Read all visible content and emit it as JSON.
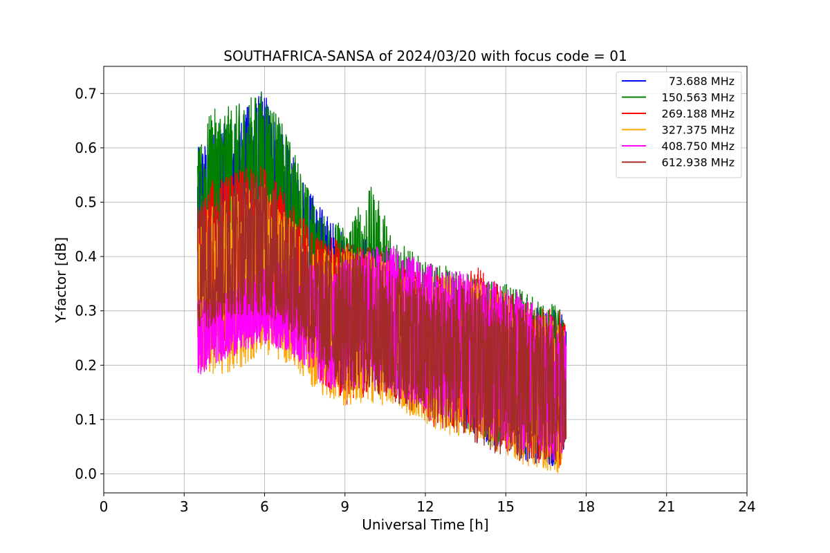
{
  "chart_data": {
    "type": "line",
    "title": "SOUTHAFRICA-SANSA of 2024/03/20 with focus code = 01",
    "xlabel": "Universal Time [h]",
    "ylabel": "Y-factor [dB]",
    "xlim": [
      0,
      24
    ],
    "ylim": [
      -0.035,
      0.75
    ],
    "xticks": [
      0,
      3,
      6,
      9,
      12,
      15,
      18,
      21,
      24
    ],
    "xtick_labels": [
      "0",
      "3",
      "6",
      "9",
      "12",
      "15",
      "18",
      "21",
      "24"
    ],
    "yticks": [
      0.0,
      0.1,
      0.2,
      0.3,
      0.4,
      0.5,
      0.6,
      0.7
    ],
    "ytick_labels": [
      "0.0",
      "0.1",
      "0.2",
      "0.3",
      "0.4",
      "0.5",
      "0.6",
      "0.7"
    ],
    "grid": true,
    "legend_position": "top-right",
    "series": [
      {
        "name": "73.688 MHz",
        "color": "#0000ff",
        "x": [
          3.5,
          4.0,
          5.0,
          6.0,
          7.0,
          8.0,
          9.0,
          10.0,
          11.0,
          12.0,
          13.0,
          14.0,
          15.0,
          16.0,
          17.0,
          17.25
        ],
        "upper": [
          0.6,
          0.63,
          0.66,
          0.71,
          0.59,
          0.5,
          0.44,
          0.43,
          0.39,
          0.37,
          0.35,
          0.34,
          0.33,
          0.31,
          0.31,
          0.27
        ],
        "lower": [
          0.3,
          0.33,
          0.34,
          0.35,
          0.26,
          0.22,
          0.17,
          0.17,
          0.14,
          0.13,
          0.09,
          0.07,
          0.03,
          0.02,
          0.01,
          0.06
        ]
      },
      {
        "name": "150.563 MHz",
        "color": "#008000",
        "x": [
          3.5,
          4.0,
          5.0,
          6.0,
          7.0,
          8.0,
          9.0,
          10.0,
          11.0,
          12.0,
          13.0,
          14.0,
          15.0,
          16.0,
          17.0,
          17.25
        ],
        "upper": [
          0.59,
          0.67,
          0.68,
          0.71,
          0.61,
          0.48,
          0.46,
          0.53,
          0.43,
          0.39,
          0.38,
          0.36,
          0.35,
          0.33,
          0.31,
          0.27
        ],
        "lower": [
          0.33,
          0.35,
          0.37,
          0.38,
          0.3,
          0.24,
          0.18,
          0.19,
          0.16,
          0.14,
          0.1,
          0.06,
          0.04,
          0.03,
          0.01,
          0.06
        ]
      },
      {
        "name": "269.188 MHz",
        "color": "#ff0000",
        "x": [
          3.5,
          4.0,
          5.0,
          6.0,
          7.0,
          8.0,
          9.0,
          10.0,
          11.0,
          12.0,
          13.0,
          14.0,
          15.0,
          16.0,
          17.0,
          17.25
        ],
        "upper": [
          0.48,
          0.54,
          0.56,
          0.57,
          0.5,
          0.44,
          0.43,
          0.42,
          0.39,
          0.37,
          0.36,
          0.38,
          0.34,
          0.32,
          0.3,
          0.27
        ],
        "lower": [
          0.25,
          0.22,
          0.23,
          0.26,
          0.23,
          0.17,
          0.12,
          0.15,
          0.13,
          0.09,
          0.08,
          0.07,
          0.04,
          0.02,
          0.01,
          0.06
        ]
      },
      {
        "name": "327.375 MHz",
        "color": "#ffa500",
        "x": [
          3.5,
          4.0,
          5.0,
          6.0,
          7.0,
          8.0,
          9.0,
          10.0,
          11.0,
          12.0,
          13.0,
          14.0,
          15.0,
          16.0,
          17.0,
          17.25
        ],
        "upper": [
          0.45,
          0.5,
          0.52,
          0.54,
          0.47,
          0.42,
          0.42,
          0.41,
          0.38,
          0.36,
          0.37,
          0.36,
          0.33,
          0.31,
          0.28,
          0.27
        ],
        "lower": [
          0.2,
          0.18,
          0.19,
          0.22,
          0.2,
          0.15,
          0.12,
          0.13,
          0.12,
          0.09,
          0.07,
          0.06,
          0.03,
          0.01,
          0.0,
          0.06
        ]
      },
      {
        "name": "408.750 MHz",
        "color": "#ff00ff",
        "x": [
          3.5,
          4.0,
          5.0,
          6.0,
          7.0,
          8.0,
          9.0,
          10.0,
          11.0,
          12.0,
          13.0,
          14.0,
          15.0,
          16.0,
          17.0,
          17.25
        ],
        "upper": [
          0.33,
          0.32,
          0.35,
          0.38,
          0.4,
          0.38,
          0.4,
          0.42,
          0.42,
          0.39,
          0.38,
          0.36,
          0.35,
          0.32,
          0.28,
          0.27
        ],
        "lower": [
          0.17,
          0.2,
          0.22,
          0.24,
          0.22,
          0.17,
          0.14,
          0.16,
          0.14,
          0.12,
          0.1,
          0.08,
          0.05,
          0.03,
          0.02,
          0.06
        ]
      },
      {
        "name": "612.938 MHz",
        "color": "#a52a2a",
        "x": [
          3.5,
          4.0,
          5.0,
          6.0,
          7.0,
          8.0,
          9.0,
          10.0,
          11.0,
          12.0,
          13.0,
          14.0,
          15.0,
          16.0,
          17.0,
          17.25
        ],
        "upper": [
          0.5,
          0.53,
          0.55,
          0.56,
          0.48,
          0.41,
          0.41,
          0.4,
          0.37,
          0.35,
          0.35,
          0.34,
          0.32,
          0.3,
          0.28,
          0.27
        ],
        "lower": [
          0.26,
          0.27,
          0.29,
          0.29,
          0.26,
          0.2,
          0.15,
          0.15,
          0.13,
          0.1,
          0.08,
          0.05,
          0.03,
          0.02,
          0.02,
          0.06
        ]
      }
    ]
  }
}
